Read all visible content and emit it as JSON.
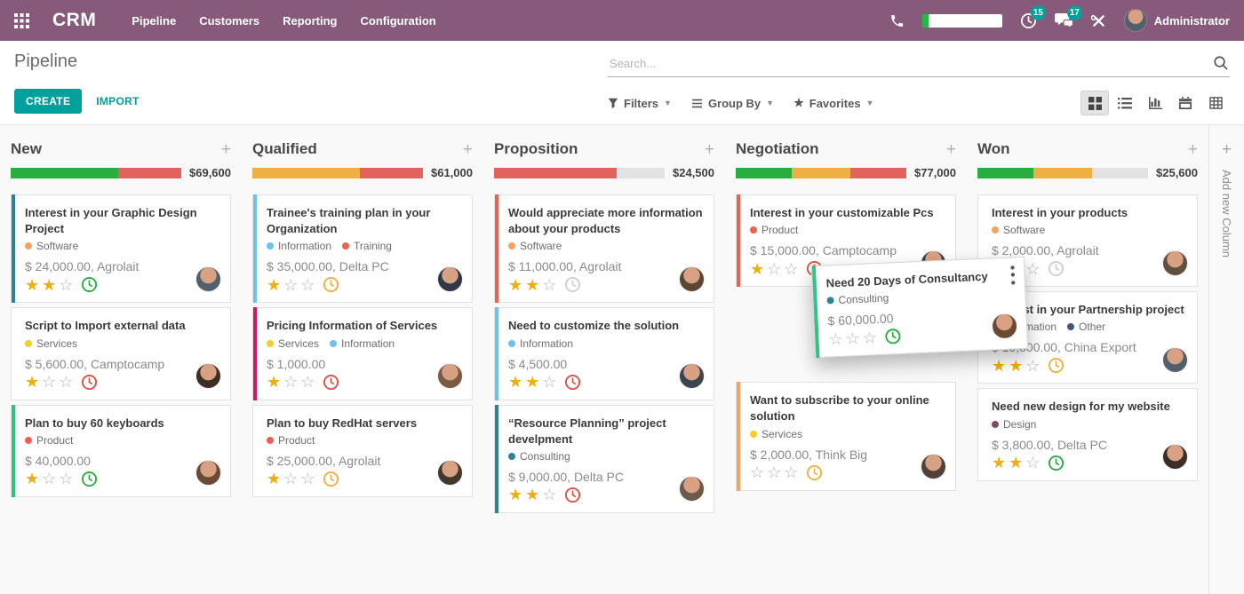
{
  "navbar": {
    "app_name": "CRM",
    "menu_items": [
      "Pipeline",
      "Customers",
      "Reporting",
      "Configuration"
    ],
    "systray": {
      "activities_badge": "15",
      "messages_badge": "17",
      "meter_fill_pct": 8,
      "user_name": "Administrator"
    },
    "colors": {
      "bg": "#875A7B",
      "badge": "#00A09D",
      "accent": "#00A09D"
    }
  },
  "control_panel": {
    "title": "Pipeline",
    "create_label": "CREATE",
    "import_label": "IMPORT",
    "search": {
      "placeholder": "Search...",
      "value": ""
    },
    "filters_label": "Filters",
    "group_by_label": "Group By",
    "favorites_label": "Favorites",
    "view_switcher": [
      "kanban",
      "list",
      "graph",
      "calendar",
      "pivot"
    ],
    "active_view": "kanban"
  },
  "board": {
    "add_column_label": "Add new Column",
    "star_color": "#f1af0c",
    "columns": [
      {
        "name": "New",
        "amount": "$69,600",
        "progress": [
          {
            "color": "#27ae3f",
            "pct": 63
          },
          {
            "color": "#e2635c",
            "pct": 37
          }
        ],
        "cards": [
          {
            "title": "Interest in your Graphic Design Project",
            "tags": [
              {
                "label": "Software",
                "color": "#F4A460"
              }
            ],
            "amount": "$ 24,000.00, Agrolait",
            "stars_filled": 2,
            "stars_total": 3,
            "activity_color": "#27ae3f",
            "color_bar": "#2C8397"
          },
          {
            "title": "Script to Import external data",
            "tags": [
              {
                "label": "Services",
                "color": "#F7CD1F"
              }
            ],
            "amount": "$ 5,600.00, Camptocamp",
            "stars_filled": 1,
            "stars_total": 3,
            "activity_color": "#e04f44",
            "color_bar": null
          },
          {
            "title": "Plan to buy 60 keyboards",
            "tags": [
              {
                "label": "Product",
                "color": "#F06050"
              }
            ],
            "amount": "$ 40,000.00",
            "stars_filled": 1,
            "stars_total": 3,
            "activity_color": "#27ae3f",
            "color_bar": "#30C381"
          }
        ]
      },
      {
        "name": "Qualified",
        "amount": "$61,000",
        "progress": [
          {
            "color": "#efaf41",
            "pct": 63
          },
          {
            "color": "#e2635c",
            "pct": 37
          }
        ],
        "cards": [
          {
            "title": "Trainee's training plan in your Organization",
            "tags": [
              {
                "label": "Information",
                "color": "#6CC1ED"
              },
              {
                "label": "Training",
                "color": "#F06050"
              }
            ],
            "amount": "$ 35,000.00, Delta PC",
            "stars_filled": 1,
            "stars_total": 3,
            "activity_color": "#efaf41",
            "color_bar": "#6CC1ED"
          },
          {
            "title": "Pricing Information of Services",
            "tags": [
              {
                "label": "Services",
                "color": "#F7CD1F"
              },
              {
                "label": "Information",
                "color": "#6CC1ED"
              }
            ],
            "amount": "$ 1,000.00",
            "stars_filled": 1,
            "stars_total": 3,
            "activity_color": "#e04f44",
            "color_bar": "#D6145F"
          },
          {
            "title": "Plan to buy RedHat servers",
            "tags": [
              {
                "label": "Product",
                "color": "#F06050"
              }
            ],
            "amount": "$ 25,000.00, Agrolait",
            "stars_filled": 1,
            "stars_total": 3,
            "activity_color": "#efaf41",
            "color_bar": null
          }
        ]
      },
      {
        "name": "Proposition",
        "amount": "$24,500",
        "progress": [
          {
            "color": "#e2635c",
            "pct": 72
          },
          {
            "color": "#e2e2e2",
            "pct": 28
          }
        ],
        "cards": [
          {
            "title": "Would appreciate more information about your products",
            "tags": [
              {
                "label": "Software",
                "color": "#F4A460"
              }
            ],
            "amount": "$ 11,000.00, Agrolait",
            "stars_filled": 2,
            "stars_total": 3,
            "activity_color": "#cfcfcf",
            "color_bar": "#F06050"
          },
          {
            "title": "Need to customize the solution",
            "tags": [
              {
                "label": "Information",
                "color": "#6CC1ED"
              }
            ],
            "amount": "$ 4,500.00",
            "stars_filled": 2,
            "stars_total": 3,
            "activity_color": "#e04f44",
            "color_bar": "#6CC1ED"
          },
          {
            "title": "“Resource Planning” project develpment",
            "tags": [
              {
                "label": "Consulting",
                "color": "#2C8397"
              }
            ],
            "amount": "$ 9,000.00, Delta PC",
            "stars_filled": 2,
            "stars_total": 3,
            "activity_color": "#e04f44",
            "color_bar": "#2C8397"
          }
        ]
      },
      {
        "name": "Negotiation",
        "amount": "$77,000",
        "progress": [
          {
            "color": "#27ae3f",
            "pct": 33
          },
          {
            "color": "#efaf41",
            "pct": 34
          },
          {
            "color": "#e2635c",
            "pct": 33
          }
        ],
        "cards": [
          {
            "title": "Interest in your customizable Pcs",
            "tags": [
              {
                "label": "Product",
                "color": "#F06050"
              }
            ],
            "amount": "$ 15,000.00, Camptocamp",
            "stars_filled": 1,
            "stars_total": 3,
            "activity_color": "#e04f44",
            "color_bar": "#F06050"
          },
          {
            "type": "placeholder"
          },
          {
            "title": "Want to subscribe to your online solution",
            "tags": [
              {
                "label": "Services",
                "color": "#F7CD1F"
              }
            ],
            "amount": "$ 2,000.00, Think Big",
            "stars_filled": 0,
            "stars_total": 3,
            "activity_color": "#efaf41",
            "color_bar": "#F4A460"
          }
        ]
      },
      {
        "name": "Won",
        "amount": "$25,600",
        "progress": [
          {
            "color": "#27ae3f",
            "pct": 33
          },
          {
            "color": "#efaf41",
            "pct": 34
          },
          {
            "color": "#e2e2e2",
            "pct": 33
          }
        ],
        "cards": [
          {
            "title": "Interest in your products",
            "tags": [
              {
                "label": "Software",
                "color": "#F4A460"
              }
            ],
            "amount": "$ 2,000.00, Agrolait",
            "stars_filled": 1,
            "stars_total": 3,
            "activity_color": "#cfcfcf",
            "color_bar": null
          },
          {
            "title": "Interest in your Partnership project",
            "tags": [
              {
                "label": "Information",
                "color": "#6CC1ED"
              },
              {
                "label": "Other",
                "color": "#475577"
              }
            ],
            "amount": "$ 19,800.00, China Export",
            "stars_filled": 2,
            "stars_total": 3,
            "activity_color": "#efaf41",
            "color_bar": null
          },
          {
            "title": "Need new design for my website",
            "tags": [
              {
                "label": "Design",
                "color": "#814968"
              }
            ],
            "amount": "$ 3,800.00, Delta PC",
            "stars_filled": 2,
            "stars_total": 3,
            "activity_color": "#27ae3f",
            "color_bar": null
          }
        ]
      }
    ],
    "dragged_card": {
      "title": "Need 20 Days of Consultancy",
      "tags": [
        {
          "label": "Consulting",
          "color": "#2C8397"
        }
      ],
      "amount": "$ 60,000.00",
      "stars_filled": 0,
      "stars_total": 3,
      "activity_color": "#27ae3f",
      "color_bar": "#30C381",
      "has_menu": true
    }
  }
}
